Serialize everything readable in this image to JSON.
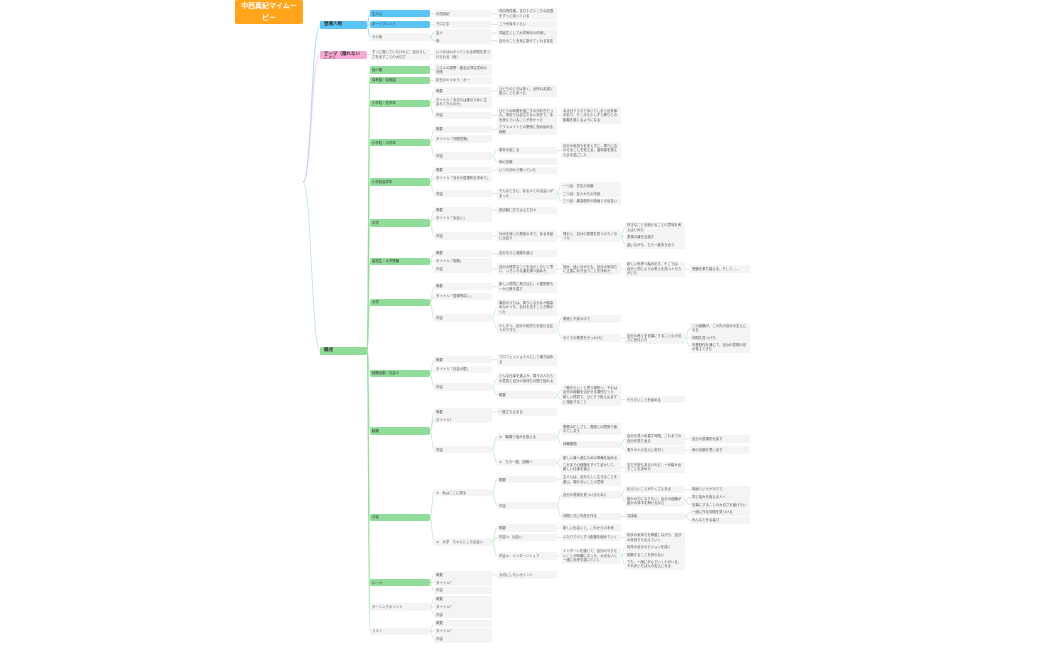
{
  "colors": {
    "root": "#ffa41b",
    "blue": "#5cc4f4",
    "pink": "#f9a9d6",
    "green": "#90dc98",
    "node": "#f4f4f4"
  },
  "root": {
    "t": "中西真紀マイムービー",
    "c": [
      {
        "t": "登場人物",
        "color": "blue",
        "c": [
          {
            "t": "主人公",
            "c": [
              {
                "t": "中西真紀",
                "c": [
                  {
                    "t": "内向的性格。まだ小さいころの記憶をずっと持っている"
                  }
                ]
              }
            ]
          },
          {
            "t": "ボーイフレンド",
            "c": [
              {
                "t": "下口さま",
                "c": [
                  {
                    "t": "二十代後半ぐらい"
                  }
                ]
              }
            ]
          },
          {
            "t": "その他",
            "nofill": true,
            "c": [
              {
                "t": "友人",
                "c": [
                  {
                    "t": "同級生として大学時代の仲良し"
                  }
                ]
              },
              {
                "t": "母",
                "c": [
                  {
                    "t": "自分のことを気に掛けてくれる存在"
                  }
                ]
              }
            ]
          }
        ]
      },
      {
        "t": "テーマ（隠れないこと）",
        "color": "pink",
        "c": [
          {
            "t": "ずっと隠していたけれど、自分らしさを出すことの大切さ",
            "c": [
              {
                "t": "いつかはわかってくれる仲間を見つけられる（仮）"
              }
            ]
          }
        ]
      },
      {
        "t": "概述",
        "color": "green",
        "c": [
          {
            "t": "幼少期",
            "c": [
              {
                "t": "ススキの原野・都会近郊住宅地の対照"
              }
            ]
          },
          {
            "t": "保育園・幼稚園",
            "c": [
              {
                "t": "初日のキラキラ・ボー"
              }
            ]
          },
          {
            "t": "小学校・低学年",
            "c": [
              {
                "t": "概要",
                "c": [
                  {
                    "t": "ひとりのときは多く、近所の友達と遊ぶこともあった"
                  }
                ]
              },
              {
                "t": "タイトル「あなたは誰のために生まれてきたのか」"
              },
              {
                "t": "内容",
                "c": [
                  {
                    "t": "ひとりの時間を過ごすのが好きだった。学校では目立たない存在で、本を読んでいることが多かった",
                    "c": [
                      {
                        "t": "ある日クラスで浮いてしまう出来事があり、そこから少しずつ周りとの距離を感じるようになる"
                      }
                    ]
                  }
                ]
              }
            ]
          },
          {
            "t": "小学校・中学年",
            "c": [
              {
                "t": "概要",
                "c": [
                  {
                    "t": "クラスメイトとの関係に悩み始める時期"
                  }
                ]
              },
              {
                "t": "タイトル「仲間意識」"
              },
              {
                "t": "内容",
                "c": [
                  {
                    "t": "事件が起こる",
                    "c": [
                      {
                        "t": "自分の気持ちを言えずに、周りに合わせることを覚える。違和感を抱えたまま過ごした"
                      }
                    ]
                  },
                  {
                    "t": "母の言葉",
                    "c": []
                  }
                ]
              }
            ]
          },
          {
            "t": "小学校高学年",
            "c": [
              {
                "t": "概要",
                "c": [
                  {
                    "t": "いつも何かと戦っていた"
                  }
                ]
              },
              {
                "t": "タイトル「自分の居場所を求めて」"
              },
              {
                "t": "内容",
                "c": [
                  {
                    "t": "そんなときに、ある人との出会いがあった",
                    "c": [
                      {
                        "t": "一つ目：先生の言葉"
                      },
                      {
                        "t": "二つ目：友人からの手紙"
                      },
                      {
                        "t": "三つ目：最高傑作の映画との出会い"
                      }
                    ]
                  }
                ]
              }
            ]
          },
          {
            "t": "中学",
            "c": [
              {
                "t": "概要",
                "c": [
                  {
                    "t": "部活動に打ち込んだ日々"
                  }
                ]
              },
              {
                "t": "タイトル「出会い」"
              },
              {
                "t": "内容",
                "c": [
                  {
                    "t": "SNSを使った発信の中で、ある作品に出会う",
                    "c": [
                      {
                        "t": "憧れと、自分の表現を見つけたくなった",
                        "c": [
                          {
                            "t": "好きなことを続けることの意味を考えはじめた"
                          },
                          {
                            "t": "表現の道を目指す"
                          },
                          {
                            "t": "迷いながら、もう一度向き合う"
                          }
                        ]
                      }
                    ]
                  }
                ]
              }
            ]
          },
          {
            "t": "高校生・大学受験",
            "c": [
              {
                "t": "概要",
                "c": [
                  {
                    "t": "自分なりに進路を選ぶ"
                  }
                ]
              },
              {
                "t": "タイトル「挑戦」"
              },
              {
                "t": "内容",
                "c": [
                  {
                    "t": "自分の得意なことを活かしたいと思い、いろいろな道を調べ始めた",
                    "c": [
                      {
                        "t": "悩み、迷いながらも、自分の気持ちに正直に向き合うことを決めた",
                        "c": [
                          {
                            "t": "新しい世界へ踏み出す。そこでは、自分と同じような考えを持つ人たちがいた",
                            "c": [
                              {
                                "t": "受験を乗り越える。そして……"
                              }
                            ]
                          }
                        ]
                      }
                    ]
                  }
                ]
              }
            ]
          },
          {
            "t": "大学",
            "c": [
              {
                "t": "概要",
                "c": [
                  {
                    "t": "新しい環境に飛び込む。人間関係も一から築き直す"
                  }
                ]
              },
              {
                "t": "タイトル「居場所探し」"
              },
              {
                "t": "内容",
                "c": [
                  {
                    "t": "最初のうちは、周りになかなか馴染めなかった。自分を出すことが怖かった"
                  },
                  {
                    "t": "少しずつ、自分の気持ちを話せる友人ができた",
                    "c": [
                      {
                        "t": "緊張と不安の中で"
                      },
                      {
                        "t": "ゼミでの発表をきっかけに",
                        "c": [
                          {
                            "t": "自分の考えを言葉にすることの大切さに気付いた",
                            "c": [
                              {
                                "t": "この経験が、この先の自分の支えになる"
                              },
                              {
                                "t": "仲間を見つけた"
                              },
                              {
                                "t": "卒業制作を通じて、自分の表現の形が見えてきた"
                              }
                            ]
                          }
                        ]
                      }
                    ]
                  }
                ]
              }
            ]
          },
          {
            "t": "就職活動・社会人",
            "c": [
              {
                "t": "概要",
                "c": [
                  {
                    "t": "プロフェッショナルとして働き始める"
                  }
                ]
              },
              {
                "t": "タイトル「社会の壁」"
              },
              {
                "t": "内容",
                "c": [
                  {
                    "t": "どんな仕事を選ぶか、周りの人たちの意見と自分の気持ちの間で揺れる"
                  },
                  {
                    "t": "概要",
                    "c": [
                      {
                        "t": "「働きたい」と思う場所へ。それは自分の経験を活かせる場所だった"
                      },
                      {
                        "t": "新しい環境で、ひとりで抱え込まずに相談すること",
                        "c": [
                          {
                            "t": "やりたいことを始める"
                          }
                        ]
                      }
                    ]
                  }
                ]
              }
            ]
          },
          {
            "t": "転職",
            "c": [
              {
                "t": "概要",
                "c": [
                  {
                    "t": "一度立ち止まる"
                  }
                ]
              },
              {
                "t": "タイトル？"
              },
              {
                "t": "内容",
                "c": [
                  {
                    "t": "①　職場で悩みを抱える",
                    "c": [
                      {
                        "t": "業務の忙しさと、周囲との関係で疲れてしまう"
                      },
                      {
                        "t": "休職期間",
                        "c": [
                          {
                            "t": "自分を見つめ直す時間。これまでの自分を振り返る",
                            "c": [
                              {
                                "t": "自分の居場所を探す"
                              }
                            ]
                          },
                          {
                            "t": "周りの人の支えに気付く",
                            "c": [
                              {
                                "t": "母の言葉を思い出す"
                              }
                            ]
                          }
                        ]
                      }
                    ]
                  },
                  {
                    "t": "②　もう一度、挑戦へ",
                    "c": [
                      {
                        "t": "新しい道へ進むための準備を始める"
                      },
                      {
                        "t": "これまでの経験をすべて活かして、新しい仕事を選ぶ",
                        "c": [
                          {
                            "t": "まだ不安もあるけれど、一歩踏み出すことを決めた"
                          }
                        ]
                      }
                    ]
                  }
                ]
              }
            ]
          },
          {
            "t": "今後",
            "c": [
              {
                "t": "①　私はここに居る",
                "c": [
                  {
                    "t": "概要",
                    "c": [
                      {
                        "t": "主人公は、自分らしく生きることを選ぶ。隠れないことの意味"
                      }
                    ]
                  },
                  {
                    "t": "内容",
                    "c": [
                      {
                        "t": "自分の表現を見つけるために",
                        "c": [
                          {
                            "t": "伝えたいことがたくさんある",
                            "c": [
                              {
                                "t": "映画というかたちで"
                              }
                            ]
                          },
                          {
                            "t": "誰かの力になりたい。自分の経験が誰かの背中を押せるなら",
                            "c": [
                              {
                                "t": "同じ悩みを抱える人へ"
                              },
                              {
                                "t": "言葉にすることの大切さを届けたい"
                              }
                            ]
                          }
                        ]
                      },
                      {
                        "t": "仲間と共に作品を作る",
                        "c": [
                          {
                            "t": "共感者",
                            "c": [
                              {
                                "t": "一緒に作る仲間を見つける"
                              },
                              {
                                "t": "みんなと作る喜び"
                              }
                            ]
                          }
                        ]
                      }
                    ]
                  }
                ]
              },
              {
                "t": "②　大学　ちゃんとした出会い",
                "c": [
                  {
                    "t": "概要",
                    "c": [
                      {
                        "t": "新しい出会いと、これからの未来"
                      }
                    ]
                  },
                  {
                    "t": "内容①：出会い",
                    "c": [
                      {
                        "t": "ふたりで少しずつ距離を縮めていく",
                        "c": [
                          {
                            "t": "相手の気持ちを尊重しながら、自分の気持ちも伝えていく"
                          }
                        ]
                      }
                    ]
                  },
                  {
                    "t": "内容②：インターンシップ",
                    "c": [
                      {
                        "t": "インターンを通じて、自分のやりたいことが明確になった。大切な人と一緒に未来を描いていく",
                        "c": [
                          {
                            "t": "将来の自分のビジョンを描く"
                          },
                          {
                            "t": "挑戦することを恐れない"
                          },
                          {
                            "t": "でも、一緒に歩んでいく人がいる。それがいちばんの支えになる"
                          }
                        ]
                      }
                    ]
                  }
                ]
              }
            ]
          },
          {
            "t": "ルーツ",
            "c": [
              {
                "t": "概要",
                "c": [
                  {
                    "t": "大切にしたいポイント"
                  }
                ]
              },
              {
                "t": "タイトル？"
              },
              {
                "t": "内容"
              }
            ]
          },
          {
            "t": "ターニングポイント",
            "nofill": true,
            "c": [
              {
                "t": "概要"
              },
              {
                "t": "タイトル？"
              },
              {
                "t": "内容"
              }
            ]
          },
          {
            "t": "ラスト",
            "nofill": true,
            "c": [
              {
                "t": "概要"
              },
              {
                "t": "タイトル？"
              },
              {
                "t": "内容"
              }
            ]
          }
        ]
      }
    ]
  }
}
